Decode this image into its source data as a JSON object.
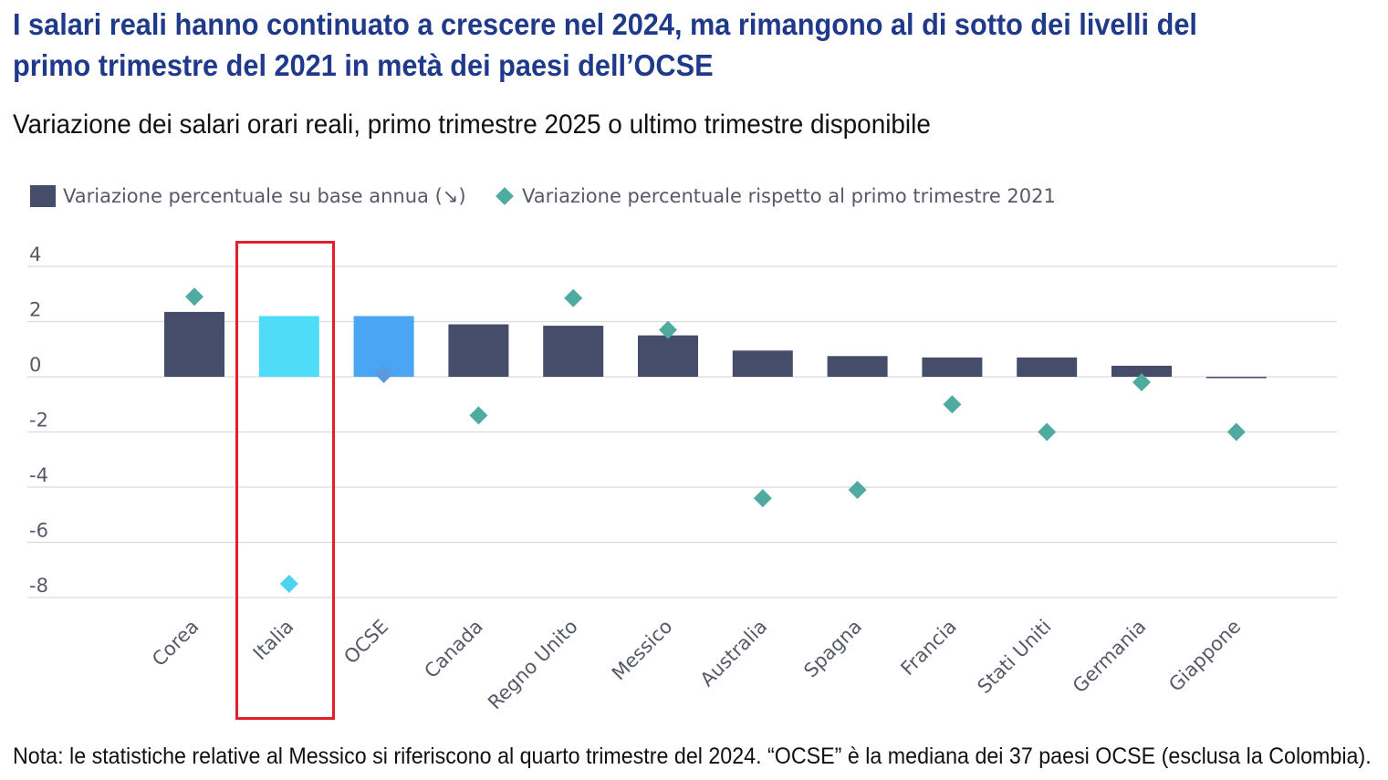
{
  "title": "I salari reali hanno continuato a crescere nel 2024, ma rimangono al di sotto dei livelli del primo trimestre del 2021 in metà dei paesi dell’OCSE",
  "subtitle": "Variazione dei salari orari reali, primo trimestre 2025 o ultimo trimestre disponibile",
  "note": "Nota: le statistiche relative al Messico si riferiscono al quarto trimestre del 2024. “OCSE” è la mediana dei 37 paesi OCSE (esclusa la Colombia).",
  "legend": {
    "bar_label": "Variazione percentuale su base annua (↘)",
    "diamond_label": "Variazione percentuale rispetto al primo trimestre 2021"
  },
  "colors": {
    "bar": "#454d6b",
    "diamond": "#4faaa0",
    "italia_bar": "#4fdcf8",
    "italia_diamond": "#4fd2ee",
    "ocse_bar": "#4aa5f5",
    "ocse_diamond": "#5a9ae0",
    "grid": "#d9dbe0",
    "highlight": "#e0202a"
  },
  "chart_data": {
    "type": "bar",
    "categories": [
      "Corea",
      "Italia",
      "OCSE",
      "Canada",
      "Regno Unito",
      "Messico",
      "Australia",
      "Spagna",
      "Francia",
      "Stati Uniti",
      "Germania",
      "Giappone"
    ],
    "series": [
      {
        "name": "Variazione percentuale su base annua (↘)",
        "type": "bar",
        "values": [
          2.35,
          2.2,
          2.2,
          1.9,
          1.85,
          1.5,
          0.95,
          0.75,
          0.7,
          0.7,
          0.4,
          -0.05
        ]
      },
      {
        "name": "Variazione percentuale rispetto al primo trimestre 2021",
        "type": "scatter",
        "marker": "diamond",
        "values": [
          2.9,
          -7.5,
          0.1,
          -1.4,
          2.85,
          1.7,
          -4.4,
          -4.1,
          -1.0,
          -2.0,
          -0.2,
          -2.0
        ]
      }
    ],
    "y_ticks": [
      4,
      2,
      0,
      -2,
      -4,
      -6,
      -8
    ],
    "ylim": [
      -8,
      4
    ],
    "highlighted_category": "Italia",
    "grid": true,
    "legend_position": "top-left"
  }
}
